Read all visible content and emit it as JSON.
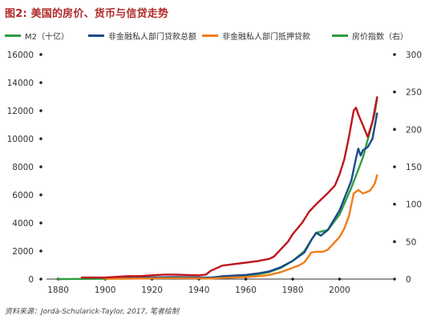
{
  "title": "图2: 美国的房价、货币与信贷走势",
  "source": "资料来源：Jordà-Schularick-Taylor, 2017, 笔者绘制",
  "colors": {
    "m2": "#2e9e3e",
    "total_credit": "#1a4a8a",
    "mortgage": "#f07d1a",
    "house_price": "#c0141c",
    "title": "#b02a2a"
  },
  "chart_data": {
    "type": "line",
    "title": "图2: 美国的房价、货币与信贷走势",
    "x_ticks": [
      1880,
      1900,
      1920,
      1940,
      1960,
      1980,
      2000
    ],
    "xlim": [
      1875,
      2020
    ],
    "left_axis": {
      "ylim": [
        0,
        16000
      ],
      "ticks": [
        0,
        2000,
        4000,
        6000,
        8000,
        10000,
        12000,
        14000,
        16000
      ],
      "tick_labels": [
        "0",
        "2000",
        "4000",
        "6000",
        "8000",
        "10000",
        "12000",
        "14000",
        "16000"
      ]
    },
    "right_axis": {
      "ylim": [
        0,
        300
      ],
      "ticks": [
        0,
        50,
        100,
        150,
        200,
        250,
        300
      ],
      "tick_labels": [
        "0",
        "50",
        "100",
        "150",
        "200",
        "250",
        "300"
      ]
    },
    "legend_position": "top",
    "series": [
      {
        "name": "M2（十亿）",
        "key": "m2",
        "axis": "left",
        "points": [
          [
            1880,
            0
          ],
          [
            1890,
            10
          ],
          [
            1900,
            20
          ],
          [
            1910,
            40
          ],
          [
            1920,
            60
          ],
          [
            1930,
            70
          ],
          [
            1940,
            80
          ],
          [
            1950,
            150
          ],
          [
            1955,
            200
          ],
          [
            1960,
            250
          ],
          [
            1965,
            350
          ],
          [
            1970,
            500
          ],
          [
            1975,
            800
          ],
          [
            1980,
            1300
          ],
          [
            1985,
            2000
          ],
          [
            1988,
            2800
          ],
          [
            1990,
            3300
          ],
          [
            1995,
            3500
          ],
          [
            2000,
            4600
          ],
          [
            2005,
            6500
          ],
          [
            2008,
            7800
          ],
          [
            2010,
            8700
          ],
          [
            2015,
            11800
          ],
          [
            2016,
            12900
          ]
        ]
      },
      {
        "name": "非金融私人部门贷款总额",
        "key": "total_credit",
        "axis": "left",
        "points": [
          [
            1905,
            60
          ],
          [
            1910,
            80
          ],
          [
            1920,
            120
          ],
          [
            1930,
            150
          ],
          [
            1940,
            120
          ],
          [
            1945,
            100
          ],
          [
            1950,
            200
          ],
          [
            1955,
            250
          ],
          [
            1960,
            300
          ],
          [
            1965,
            400
          ],
          [
            1970,
            550
          ],
          [
            1975,
            850
          ],
          [
            1980,
            1300
          ],
          [
            1985,
            1900
          ],
          [
            1988,
            2800
          ],
          [
            1990,
            3300
          ],
          [
            1992,
            3100
          ],
          [
            1995,
            3500
          ],
          [
            2000,
            4900
          ],
          [
            2005,
            7000
          ],
          [
            2007,
            8600
          ],
          [
            2008,
            9300
          ],
          [
            2009,
            8800
          ],
          [
            2010,
            9200
          ],
          [
            2012,
            9400
          ],
          [
            2014,
            10000
          ],
          [
            2016,
            11800
          ]
        ]
      },
      {
        "name": "非金融私人部门抵押贷款",
        "key": "mortgage",
        "axis": "left",
        "points": [
          [
            1900,
            20
          ],
          [
            1910,
            30
          ],
          [
            1920,
            50
          ],
          [
            1930,
            70
          ],
          [
            1940,
            50
          ],
          [
            1945,
            40
          ],
          [
            1950,
            80
          ],
          [
            1955,
            120
          ],
          [
            1960,
            150
          ],
          [
            1965,
            200
          ],
          [
            1970,
            300
          ],
          [
            1975,
            500
          ],
          [
            1980,
            800
          ],
          [
            1983,
            1000
          ],
          [
            1985,
            1200
          ],
          [
            1988,
            1900
          ],
          [
            1990,
            1950
          ],
          [
            1993,
            1950
          ],
          [
            1995,
            2100
          ],
          [
            2000,
            3000
          ],
          [
            2002,
            3600
          ],
          [
            2004,
            4500
          ],
          [
            2006,
            6100
          ],
          [
            2008,
            6350
          ],
          [
            2010,
            6100
          ],
          [
            2013,
            6300
          ],
          [
            2015,
            6800
          ],
          [
            2016,
            7400
          ]
        ]
      },
      {
        "name": "房价指数（右）",
        "key": "house_price",
        "axis": "right",
        "points": [
          [
            1890,
            2
          ],
          [
            1900,
            2
          ],
          [
            1905,
            3
          ],
          [
            1910,
            4
          ],
          [
            1915,
            4
          ],
          [
            1920,
            5
          ],
          [
            1925,
            6
          ],
          [
            1930,
            6
          ],
          [
            1935,
            5.5
          ],
          [
            1940,
            5
          ],
          [
            1943,
            6
          ],
          [
            1945,
            11
          ],
          [
            1950,
            18
          ],
          [
            1955,
            20
          ],
          [
            1960,
            22
          ],
          [
            1965,
            24
          ],
          [
            1970,
            27
          ],
          [
            1972,
            30
          ],
          [
            1975,
            40
          ],
          [
            1978,
            50
          ],
          [
            1980,
            60
          ],
          [
            1984,
            75
          ],
          [
            1987,
            90
          ],
          [
            1990,
            100
          ],
          [
            1995,
            115
          ],
          [
            1998,
            125
          ],
          [
            2000,
            140
          ],
          [
            2002,
            160
          ],
          [
            2004,
            190
          ],
          [
            2006,
            225
          ],
          [
            2007,
            229
          ],
          [
            2008,
            220
          ],
          [
            2010,
            205
          ],
          [
            2012,
            190
          ],
          [
            2014,
            210
          ],
          [
            2016,
            243
          ]
        ]
      }
    ]
  }
}
